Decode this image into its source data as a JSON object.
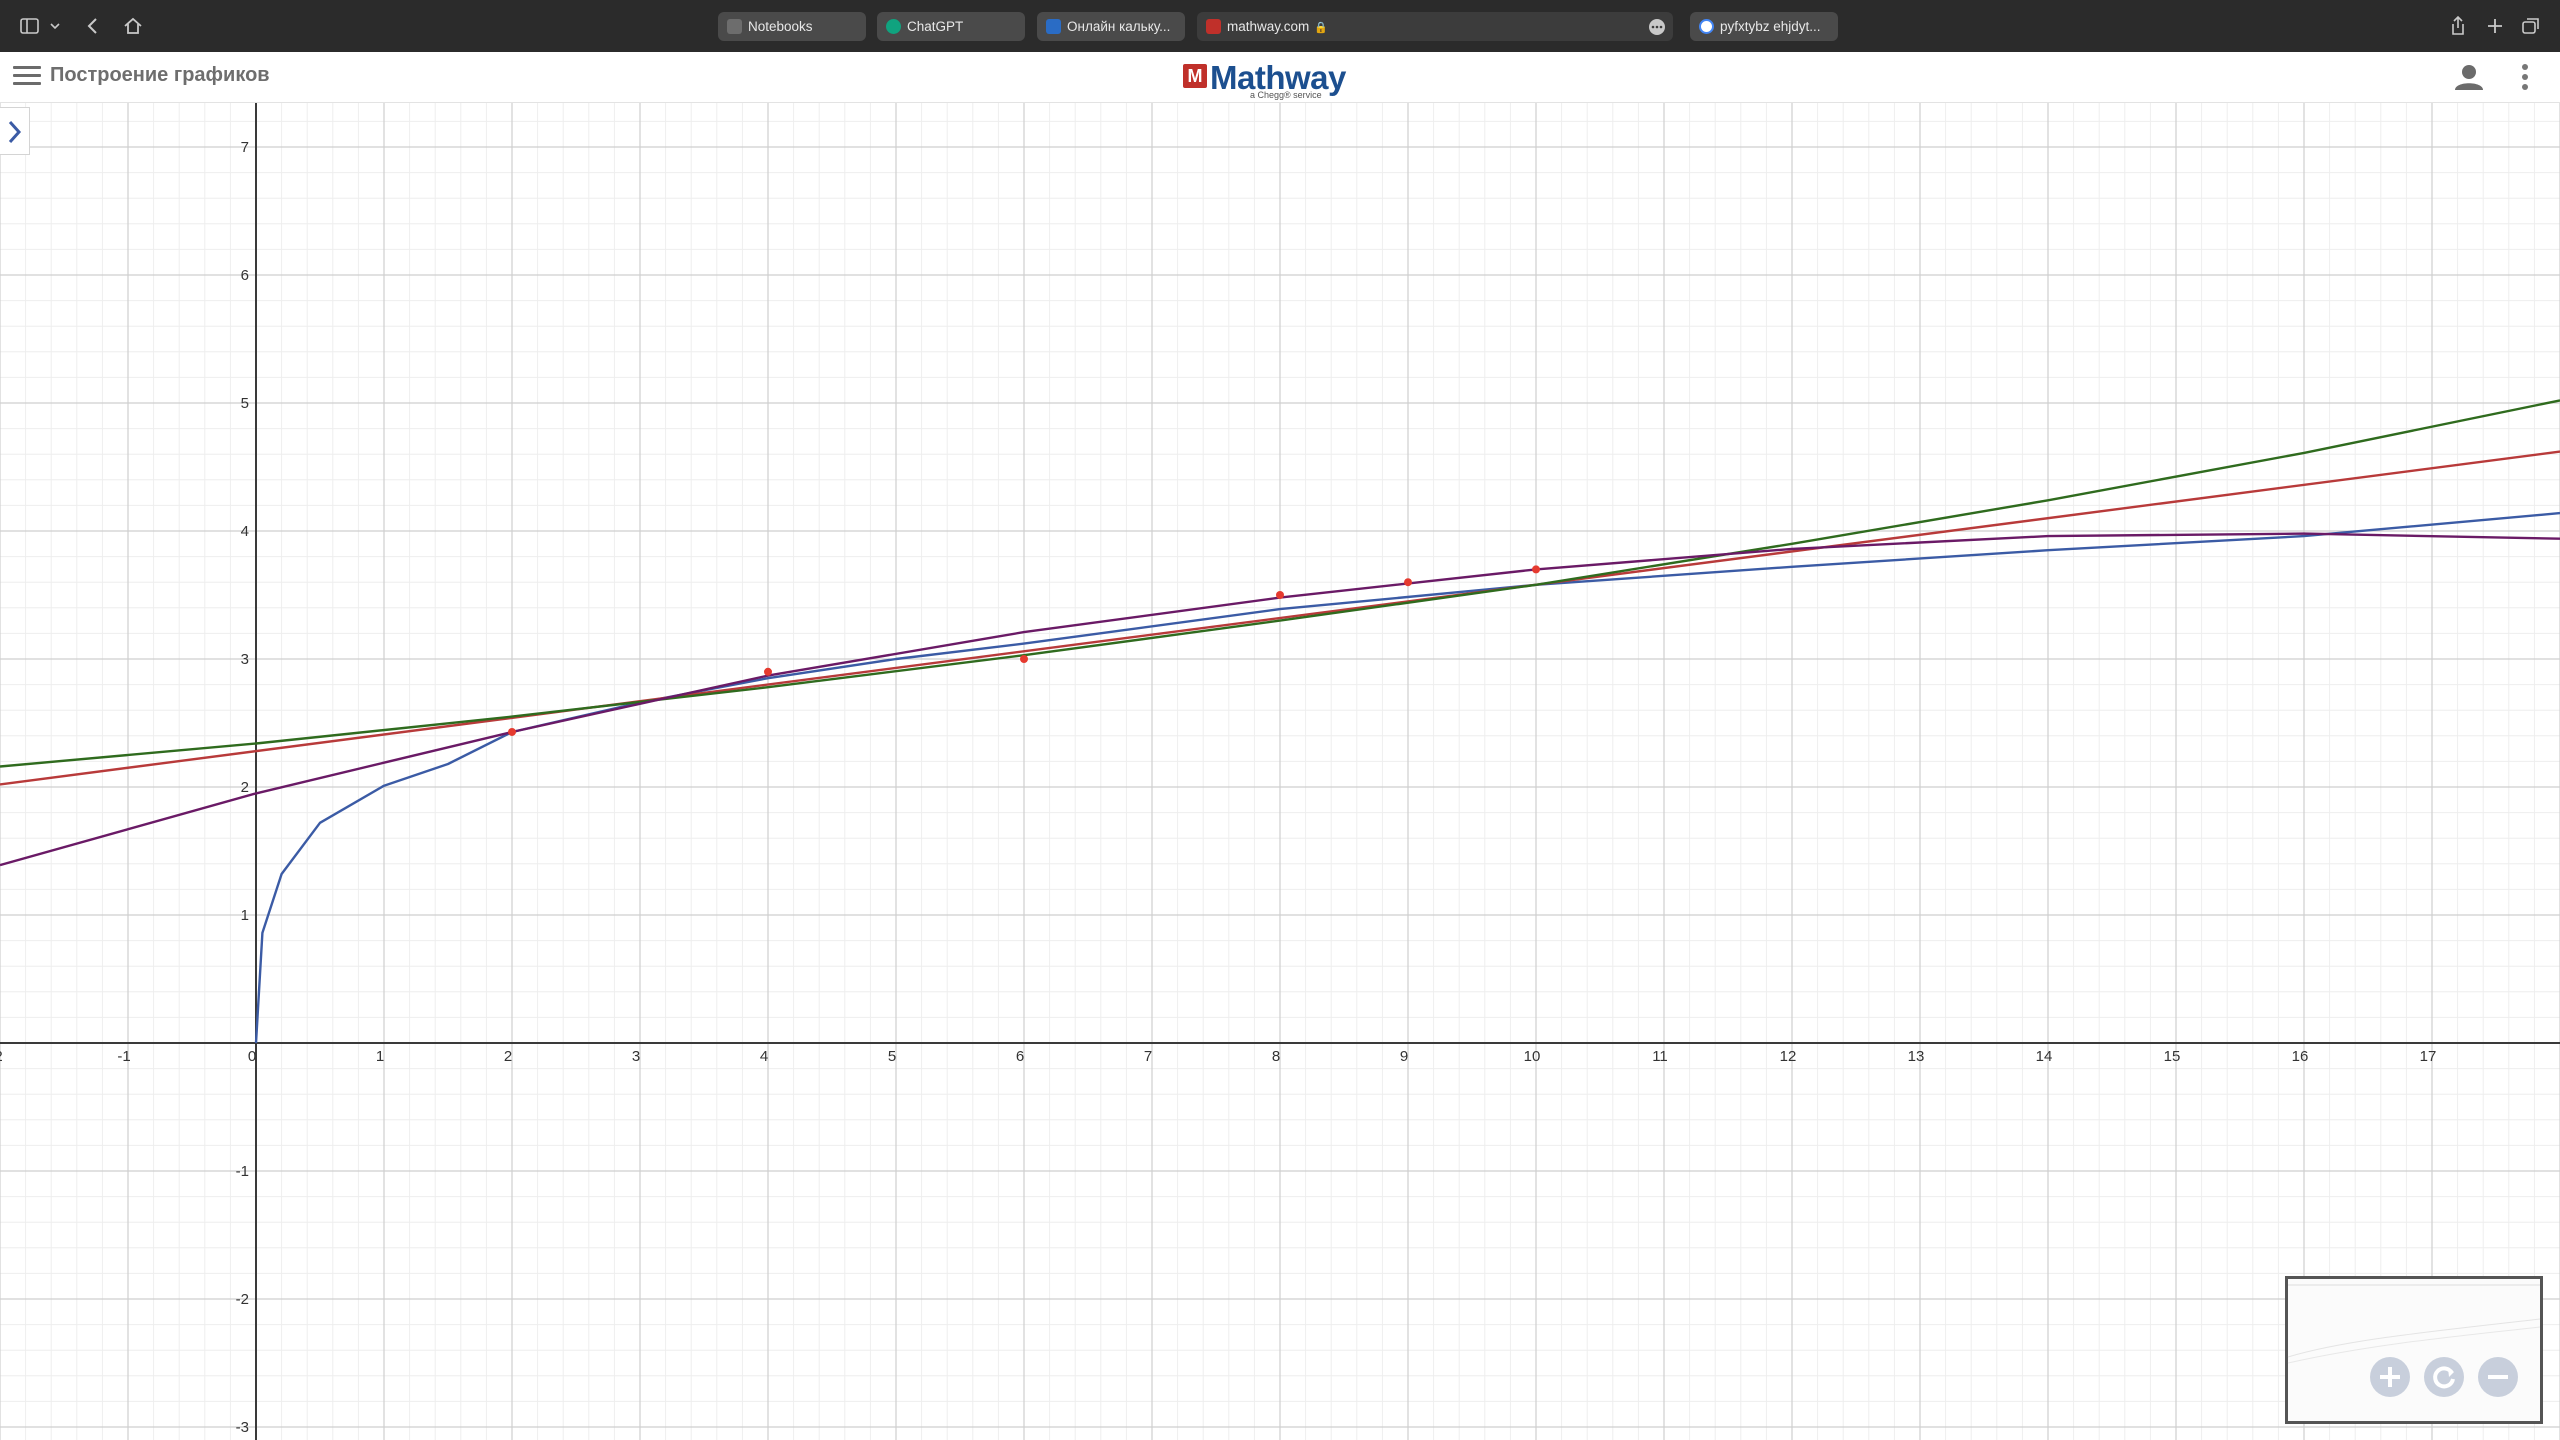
{
  "browser": {
    "tabs": [
      {
        "label": "Notebooks",
        "favicon_color": "#6d6d6d"
      },
      {
        "label": "ChatGPT",
        "favicon_color": "#10a37f"
      },
      {
        "label": "Онлайн кальку...",
        "favicon_color": "#2a6cc5"
      },
      {
        "label": "mathway.com",
        "favicon_color": "#c0302a"
      },
      {
        "label": "pyfxtybz ehjdyt...",
        "favicon_color": "#4285f4"
      }
    ]
  },
  "header": {
    "page_title": "Построение графиков",
    "logo_mark": "M",
    "logo_text": "Mathway",
    "logo_subtitle": "a Chegg® service"
  },
  "chart_data": {
    "type": "line",
    "x_ticks": [
      "-2",
      "-1",
      "0",
      "1",
      "2",
      "3",
      "4",
      "5",
      "6",
      "7",
      "8",
      "9",
      "10",
      "11",
      "12",
      "13",
      "14",
      "15",
      "16",
      "17"
    ],
    "y_ticks": [
      "-3",
      "-2",
      "-1",
      "0",
      "1",
      "2",
      "3",
      "4",
      "5",
      "6",
      "7"
    ],
    "xlim": [
      -2,
      18
    ],
    "ylim": [
      -3.1,
      7.3
    ],
    "grid": true,
    "points": [
      [
        2,
        2.43
      ],
      [
        4,
        2.9
      ],
      [
        6,
        3.0
      ],
      [
        8,
        3.5
      ],
      [
        9,
        3.6
      ],
      [
        10,
        3.7
      ]
    ],
    "point_color": "#e53a2f",
    "series": [
      {
        "type": "log",
        "color": "#3b5ba5",
        "x": [
          0,
          0.05,
          0.2,
          0.5,
          1,
          1.5,
          2,
          3,
          4,
          5,
          6,
          8,
          10,
          12,
          14,
          16,
          18
        ],
        "y": [
          0,
          0.86,
          1.32,
          1.72,
          2.01,
          2.18,
          2.43,
          2.66,
          2.85,
          3.0,
          3.12,
          3.39,
          3.58,
          3.72,
          3.85,
          3.96,
          4.14
        ]
      },
      {
        "type": "linear",
        "color": "#b83a3a",
        "x": [
          -2,
          18
        ],
        "y": [
          2.02,
          4.62
        ]
      },
      {
        "type": "exponential",
        "color": "#2f6b1e",
        "x": [
          -2,
          0,
          2,
          4,
          6,
          8,
          10,
          12,
          14,
          16,
          18
        ],
        "y": [
          2.16,
          2.34,
          2.55,
          2.78,
          3.03,
          3.3,
          3.58,
          3.9,
          4.24,
          4.61,
          5.02
        ]
      },
      {
        "type": "polynomial",
        "color": "#6a1a66",
        "x": [
          -2,
          0,
          2,
          4,
          6,
          8,
          10,
          12,
          14,
          16,
          18
        ],
        "y": [
          1.39,
          1.95,
          2.43,
          2.87,
          3.21,
          3.48,
          3.7,
          3.86,
          3.96,
          3.98,
          3.94
        ]
      }
    ]
  }
}
